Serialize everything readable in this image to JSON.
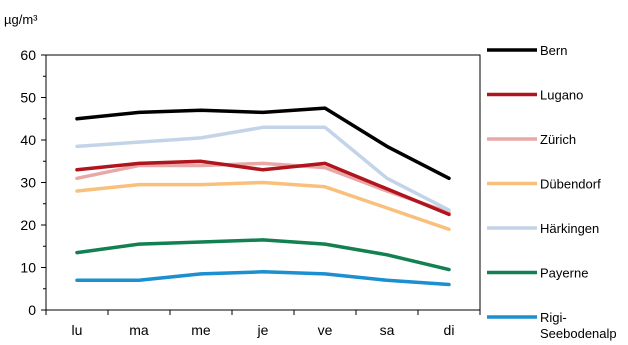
{
  "chart_data": {
    "type": "line",
    "ylabel": "µg/m³",
    "categories": [
      "lu",
      "ma",
      "me",
      "je",
      "ve",
      "sa",
      "di"
    ],
    "ylim": [
      0,
      60
    ],
    "yticks": [
      0,
      10,
      20,
      30,
      40,
      50,
      60
    ],
    "grid": false,
    "legend_position": "right",
    "series": [
      {
        "name": "Bern",
        "color": "#000000",
        "values": [
          45,
          46.5,
          47,
          46.5,
          47.5,
          38.5,
          31
        ]
      },
      {
        "name": "Lugano",
        "color": "#b0141c",
        "values": [
          33,
          34.5,
          35,
          33,
          34.5,
          28.5,
          22.5
        ]
      },
      {
        "name": "Zürich",
        "color": "#e8a8a8",
        "values": [
          31,
          34,
          34,
          34.5,
          33.5,
          28,
          23
        ]
      },
      {
        "name": "Dübendorf",
        "color": "#f9c07c",
        "values": [
          28,
          29.5,
          29.5,
          30,
          29,
          24,
          19
        ]
      },
      {
        "name": "Härkingen",
        "color": "#c4d4e8",
        "values": [
          38.5,
          39.5,
          40.5,
          43,
          43,
          31,
          23.5
        ]
      },
      {
        "name": "Payerne",
        "color": "#128050",
        "values": [
          13.5,
          15.5,
          16,
          16.5,
          15.5,
          13,
          9.5
        ]
      },
      {
        "name": "Rigi-\nSeebodenalp",
        "color": "#1b8fcf",
        "values": [
          7,
          7,
          8.5,
          9,
          8.5,
          7,
          6
        ]
      }
    ]
  }
}
